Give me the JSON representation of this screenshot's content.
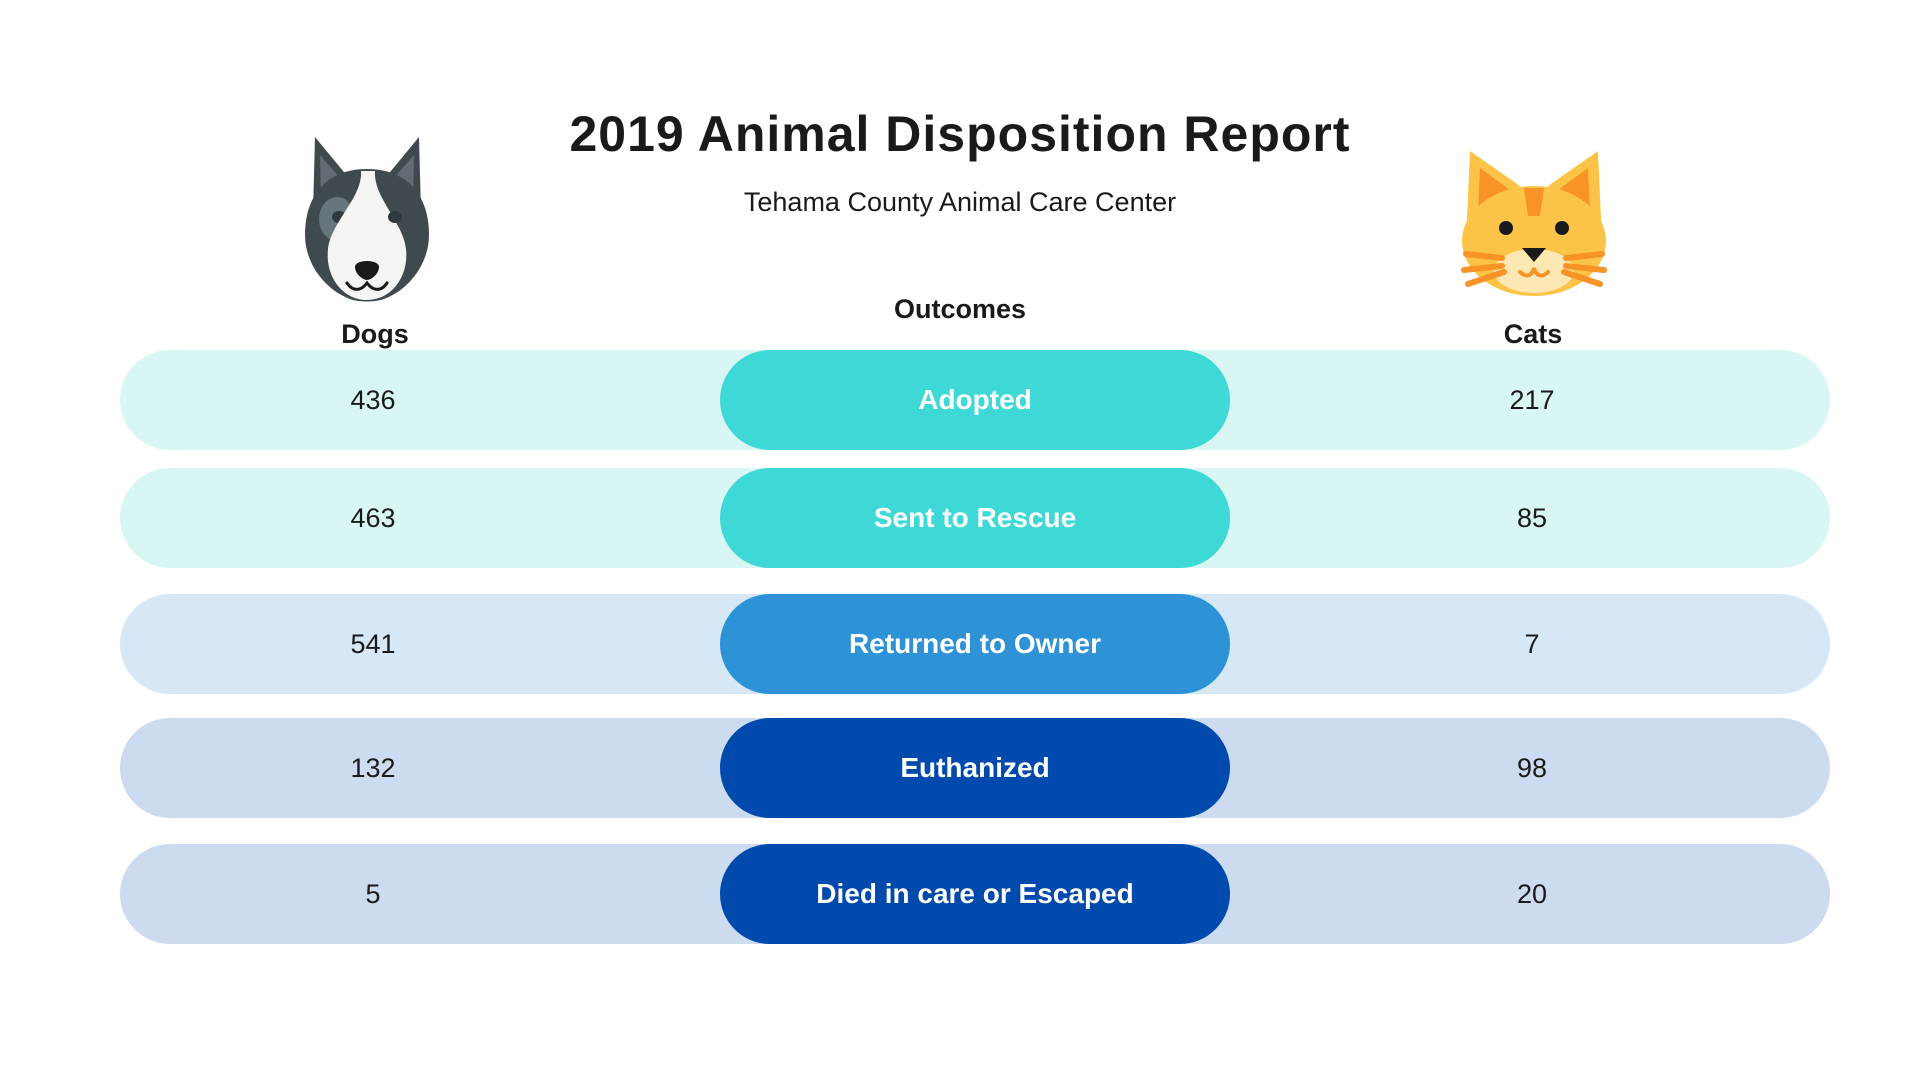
{
  "report": {
    "title": "2019 Animal Disposition Report",
    "subtitle": "Tehama County Animal Care Center"
  },
  "columns": {
    "dogs": "Dogs",
    "outcomes": "Outcomes",
    "cats": "Cats"
  },
  "icons": {
    "dog": "dog-face-icon",
    "cat": "cat-face-icon"
  },
  "rows": [
    {
      "outcome": "Adopted",
      "dogs": "436",
      "cats": "217",
      "row_color": "#d7f6f4",
      "pill_color": "#3ed9d6"
    },
    {
      "outcome": "Sent to Rescue",
      "dogs": "463",
      "cats": "85",
      "row_color": "#d7f6f4",
      "pill_color": "#3ed9d6"
    },
    {
      "outcome": "Returned to Owner",
      "dogs": "541",
      "cats": "7",
      "row_color": "#d6e8f6",
      "pill_color": "#2e92d6"
    },
    {
      "outcome": "Euthanized",
      "dogs": "132",
      "cats": "98",
      "row_color": "#ccdbf0",
      "pill_color": "#004aad"
    },
    {
      "outcome": "Died in care or Escaped",
      "dogs": "5",
      "cats": "20",
      "row_color": "#ccdbf0",
      "pill_color": "#004aad"
    }
  ]
}
